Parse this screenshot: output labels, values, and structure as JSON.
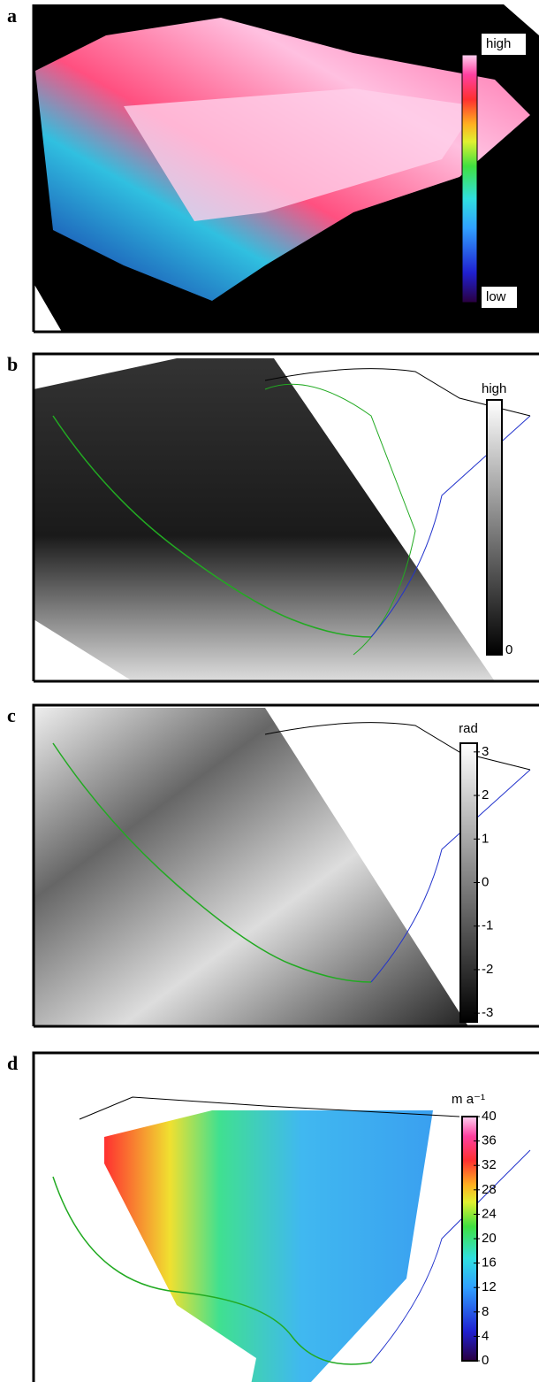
{
  "panels": [
    {
      "label": "a",
      "colorbar": {
        "top": "high",
        "bottom": "low"
      }
    },
    {
      "label": "b",
      "colorbar": {
        "top": "high",
        "bottom": 0
      }
    },
    {
      "label": "c",
      "colorbar": {
        "unit": "rad",
        "lim": [
          -3.2,
          3.2
        ],
        "ticks": [
          3,
          2,
          1,
          0,
          -1,
          -2,
          -3
        ]
      }
    },
    {
      "label": "d",
      "colorbar": {
        "unit": "m a⁻¹",
        "lim": [
          0,
          40
        ],
        "ticks": [
          40,
          36,
          32,
          28,
          24,
          20,
          16,
          12,
          8,
          4,
          0
        ]
      }
    }
  ]
}
